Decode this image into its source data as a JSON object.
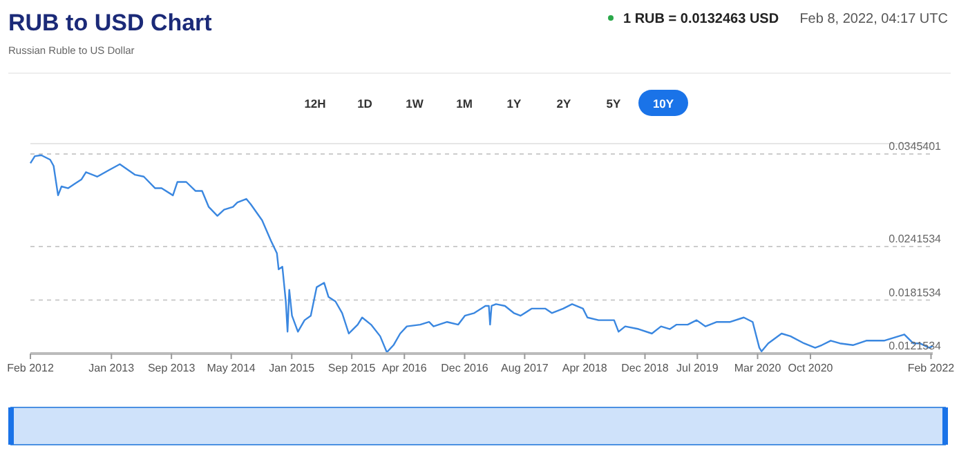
{
  "chart_data": {
    "type": "line",
    "title": "RUB to USD Chart",
    "subtitle": "Russian Ruble to US Dollar",
    "annotations": [
      "1 RUB = 0.0132463 USD",
      "Feb 8, 2022, 04:17 UTC",
      "12H",
      "1D",
      "1W",
      "1M",
      "1Y",
      "2Y",
      "5Y",
      "10Y"
    ],
    "x": [
      "2012-02-08",
      "2012-02-26",
      "2012-03-23",
      "2012-04-28",
      "2012-05-12",
      "2012-05-30",
      "2012-06-13",
      "2012-07-10",
      "2012-08-06",
      "2012-09-02",
      "2012-09-20",
      "2012-11-05",
      "2012-12-20",
      "2013-02-04",
      "2013-04-07",
      "2013-05-12",
      "2013-06-27",
      "2013-07-23",
      "2013-09-07",
      "2013-09-25",
      "2013-10-31",
      "2013-12-07",
      "2014-01-03",
      "2014-01-30",
      "2014-03-06",
      "2014-04-02",
      "2014-05-08",
      "2014-05-26",
      "2014-07-01",
      "2014-07-19",
      "2014-09-03",
      "2014-10-09",
      "2014-11-02",
      "2014-11-09",
      "2014-11-24",
      "2014-12-08",
      "2014-12-15",
      "2014-12-22",
      "2015-01-02",
      "2015-01-26",
      "2015-02-22",
      "2015-03-19",
      "2015-04-12",
      "2015-05-12",
      "2015-05-30",
      "2015-06-27",
      "2015-07-24",
      "2015-08-20",
      "2015-09-25",
      "2015-10-13",
      "2015-11-18",
      "2015-12-25",
      "2016-01-21",
      "2016-02-17",
      "2016-03-15",
      "2016-04-11",
      "2016-06-04",
      "2016-07-10",
      "2016-07-28",
      "2016-09-21",
      "2016-11-05",
      "2016-12-02",
      "2017-01-09",
      "2017-02-23",
      "2017-03-09",
      "2017-03-14",
      "2017-03-20",
      "2017-04-07",
      "2017-05-13",
      "2017-06-18",
      "2017-07-15",
      "2017-08-30",
      "2017-10-23",
      "2017-11-19",
      "2018-01-04",
      "2018-02-09",
      "2018-03-25",
      "2018-04-12",
      "2018-05-27",
      "2018-07-29",
      "2018-08-16",
      "2018-09-12",
      "2018-11-05",
      "2018-12-29",
      "2019-02-04",
      "2019-03-12",
      "2019-04-08",
      "2019-05-23",
      "2019-06-28",
      "2019-08-03",
      "2019-09-18",
      "2019-11-11",
      "2020-01-05",
      "2020-02-10",
      "2020-03-08",
      "2020-03-17",
      "2020-04-13",
      "2020-06-06",
      "2020-07-12",
      "2020-09-05",
      "2020-10-20",
      "2020-11-16",
      "2020-12-22",
      "2021-01-28",
      "2021-03-22",
      "2021-05-15",
      "2021-07-26",
      "2021-10-16",
      "2021-11-21",
      "2021-12-18",
      "2022-01-24",
      "2022-02-08"
    ],
    "series": [
      {
        "color": "#3a87e0",
        "values": [
          0.0335,
          0.0343,
          0.0344,
          0.0339,
          0.0332,
          0.0299,
          0.0309,
          0.0307,
          0.0312,
          0.0317,
          0.0325,
          0.032,
          0.0327,
          0.0334,
          0.0322,
          0.032,
          0.0307,
          0.0307,
          0.0299,
          0.0314,
          0.0314,
          0.0304,
          0.0304,
          0.0286,
          0.0276,
          0.0283,
          0.0286,
          0.0291,
          0.0295,
          0.0289,
          0.0271,
          0.0248,
          0.0234,
          0.0216,
          0.0219,
          0.018,
          0.0146,
          0.0193,
          0.0164,
          0.0146,
          0.0159,
          0.0164,
          0.0196,
          0.0201,
          0.0185,
          0.018,
          0.0167,
          0.0144,
          0.0154,
          0.0162,
          0.0154,
          0.0141,
          0.0123,
          0.0131,
          0.0144,
          0.0152,
          0.0154,
          0.0157,
          0.0152,
          0.0157,
          0.0154,
          0.0164,
          0.0167,
          0.0175,
          0.0175,
          0.0154,
          0.0175,
          0.0177,
          0.0175,
          0.0167,
          0.0164,
          0.0172,
          0.0172,
          0.0167,
          0.0172,
          0.0177,
          0.0172,
          0.0162,
          0.0159,
          0.0159,
          0.0146,
          0.0152,
          0.0149,
          0.0144,
          0.0152,
          0.0149,
          0.0154,
          0.0154,
          0.0159,
          0.0152,
          0.0157,
          0.0157,
          0.0162,
          0.0157,
          0.0128,
          0.0124,
          0.0133,
          0.0144,
          0.0141,
          0.0133,
          0.0128,
          0.0131,
          0.0136,
          0.0133,
          0.0131,
          0.0136,
          0.0136,
          0.0143,
          0.0133,
          0.0133,
          0.0128,
          0.013
        ]
      }
    ],
    "xlim": [
      "2012-02-08",
      "2022-02-08"
    ],
    "xticks": [
      {
        "value": "2012-02-08",
        "label": "Feb 2012"
      },
      {
        "value": "2013-01-01",
        "label": "Jan 2013"
      },
      {
        "value": "2013-09-01",
        "label": "Sep 2013"
      },
      {
        "value": "2014-05-01",
        "label": "May 2014"
      },
      {
        "value": "2015-01-01",
        "label": "Jan 2015"
      },
      {
        "value": "2015-09-01",
        "label": "Sep 2015"
      },
      {
        "value": "2016-04-01",
        "label": "Apr 2016"
      },
      {
        "value": "2016-12-01",
        "label": "Dec 2016"
      },
      {
        "value": "2017-08-01",
        "label": "Aug 2017"
      },
      {
        "value": "2018-04-01",
        "label": "Apr 2018"
      },
      {
        "value": "2018-12-01",
        "label": "Dec 2018"
      },
      {
        "value": "2019-07-01",
        "label": "Jul 2019"
      },
      {
        "value": "2020-03-01",
        "label": "Mar 2020"
      },
      {
        "value": "2020-10-01",
        "label": "Oct 2020"
      },
      {
        "value": "2022-02-01",
        "label": "Feb 2022"
      }
    ],
    "ylim": [
      0.0121534,
      0.0357
    ],
    "yticks": [
      0.0121534,
      0.0181534,
      0.0241534,
      0.0345401
    ],
    "grid": "y",
    "marker": "none",
    "line_style": "solid"
  }
}
